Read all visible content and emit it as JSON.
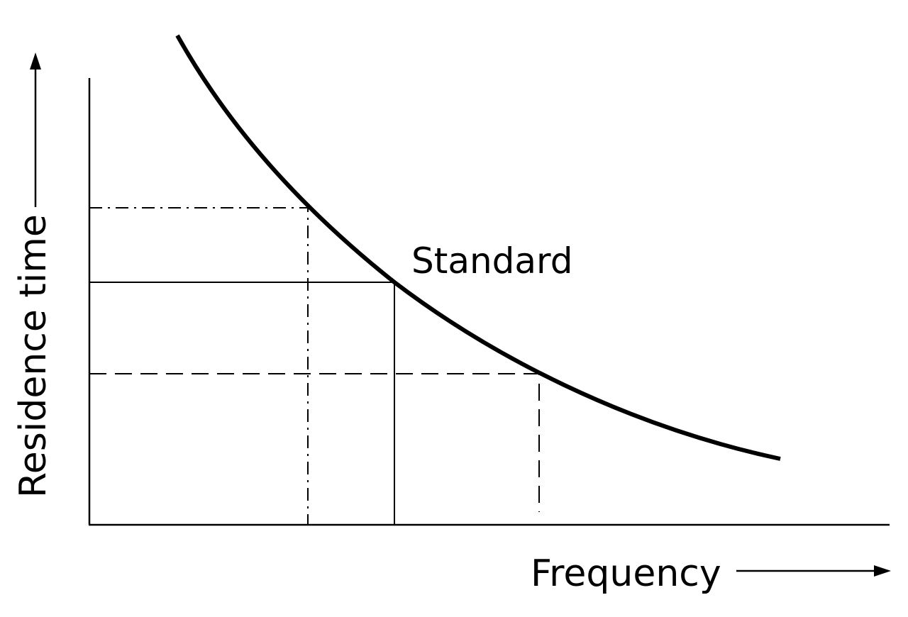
{
  "axes": {
    "y_label": "Residence time",
    "x_label": "Frequency"
  },
  "curve": {
    "label": "Standard"
  }
}
